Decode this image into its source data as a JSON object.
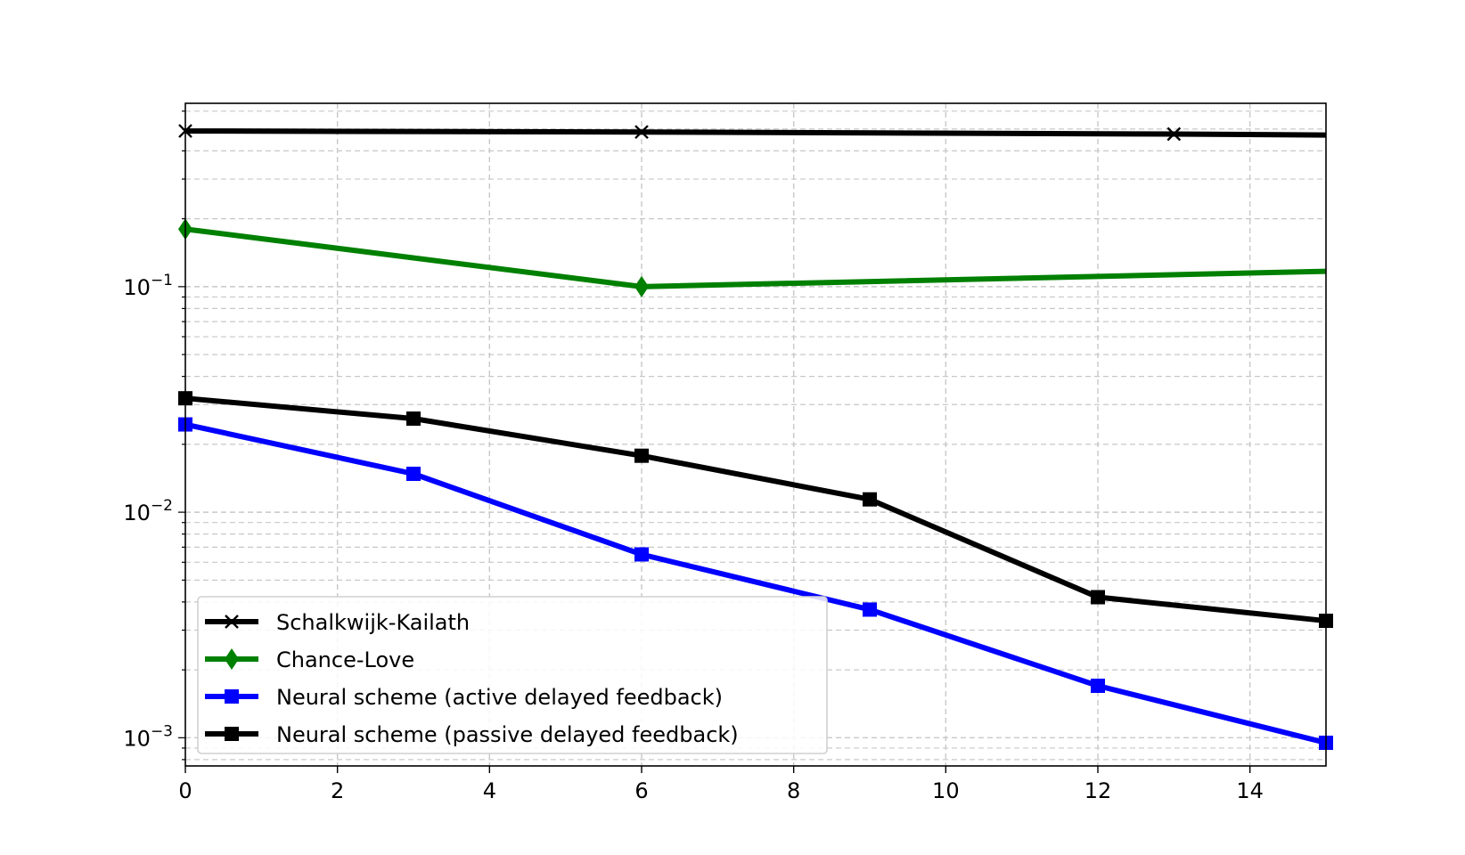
{
  "chart_data": {
    "type": "line",
    "title": "",
    "xlabel": "",
    "ylabel": "",
    "xlim": [
      0,
      15
    ],
    "ylim": [
      0.00075,
      0.65
    ],
    "yscale": "log",
    "grid": true,
    "legend_position": "lower-left",
    "xticks": [
      0,
      2,
      4,
      6,
      8,
      10,
      12,
      14
    ],
    "yticks": [
      {
        "value": 0.001,
        "base": "10",
        "exp": "−3"
      },
      {
        "value": 0.01,
        "base": "10",
        "exp": "−2"
      },
      {
        "value": 0.1,
        "base": "10",
        "exp": "−1"
      }
    ],
    "series": [
      {
        "name": "Schalkwijk-Kailath",
        "color": "#000000",
        "marker": "x",
        "x": [
          0,
          6,
          13,
          15
        ],
        "y": [
          0.49,
          0.485,
          0.475,
          0.47
        ],
        "marker_idx": [
          0,
          1,
          2
        ]
      },
      {
        "name": "Chance-Love",
        "color": "#008000",
        "marker": "diamond",
        "x": [
          0,
          6,
          15
        ],
        "y": [
          0.18,
          0.1,
          0.117
        ],
        "marker_idx": [
          0,
          1
        ]
      },
      {
        "name": "Neural scheme (active delayed feedback)",
        "color": "#0000ff",
        "marker": "square",
        "x": [
          0,
          3,
          6,
          9,
          12,
          15
        ],
        "y": [
          0.0245,
          0.0148,
          0.0065,
          0.0037,
          0.0017,
          0.00095
        ],
        "marker_idx": [
          0,
          1,
          2,
          3,
          4,
          5
        ]
      },
      {
        "name": "Neural scheme (passive delayed feedback)",
        "color": "#000000",
        "marker": "square",
        "x": [
          0,
          3,
          6,
          9,
          12,
          15
        ],
        "y": [
          0.032,
          0.026,
          0.0178,
          0.0114,
          0.0042,
          0.0033
        ],
        "marker_idx": [
          0,
          1,
          2,
          3,
          4,
          5
        ]
      }
    ]
  }
}
